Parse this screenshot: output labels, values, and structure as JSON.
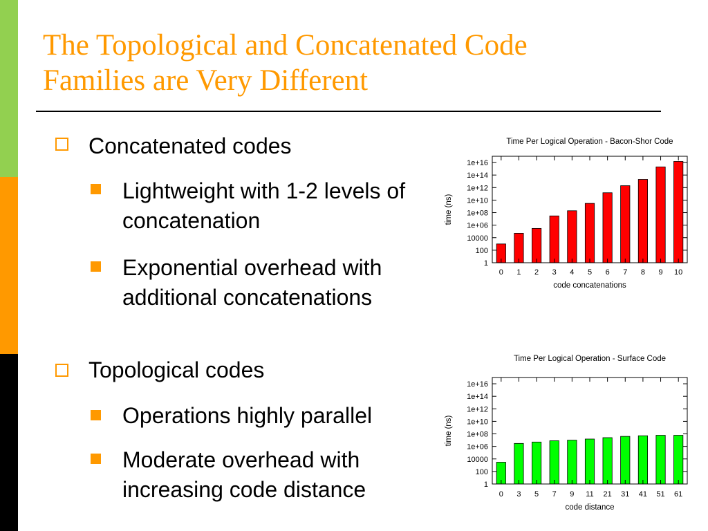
{
  "colors": {
    "sidebar_top": "#92d050",
    "sidebar_mid": "#ff9900",
    "sidebar_bottom": "#000000",
    "title": "#ff9900",
    "bullet_marker": "#ff9900",
    "bar_red": "#ff0000",
    "bar_green": "#00ff00"
  },
  "slide": {
    "title_line1": "The Topological and Concatenated Code",
    "title_line2": "Families are Very Different"
  },
  "bullets": {
    "concat": {
      "heading": "Concatenated codes",
      "items": [
        "Lightweight with 1-2 levels of concatenation",
        "Exponential overhead with additional concatenations"
      ]
    },
    "topo": {
      "heading": "Topological codes",
      "items": [
        "Operations highly parallel",
        "Moderate overhead with increasing code distance"
      ]
    }
  },
  "chart_data": [
    {
      "type": "bar",
      "title": "Time Per Logical Operation - Bacon-Shor Code",
      "xlabel": "code concatenations",
      "ylabel": "time (ns)",
      "y_scale": "log10",
      "ylim": [
        1,
        1e+17
      ],
      "y_ticks": [
        "1",
        "100",
        "10000",
        "1e+06",
        "1e+08",
        "1e+10",
        "1e+12",
        "1e+14",
        "1e+16"
      ],
      "categories": [
        "0",
        "1",
        "2",
        "3",
        "4",
        "5",
        "6",
        "7",
        "8",
        "9",
        "10"
      ],
      "values": [
        1000,
        50000,
        300000,
        30000000.0,
        200000000.0,
        3000000000.0,
        150000000000.0,
        2000000000000.0,
        20000000000000.0,
        2000000000000000.0,
        1.5e+16
      ],
      "color": "#ff0000",
      "grid": false
    },
    {
      "type": "bar",
      "title": "Time Per Logical Operation - Surface Code",
      "xlabel": "code distance",
      "ylabel": "time (ns)",
      "y_scale": "log10",
      "ylim": [
        1,
        1e+17
      ],
      "y_ticks": [
        "1",
        "100",
        "10000",
        "1e+06",
        "1e+08",
        "1e+10",
        "1e+12",
        "1e+14",
        "1e+16"
      ],
      "categories": [
        "0",
        "3",
        "5",
        "7",
        "9",
        "11",
        "21",
        "31",
        "41",
        "51",
        "61"
      ],
      "values": [
        3000,
        3000000.0,
        5000000.0,
        8000000.0,
        10000000.0,
        15000000.0,
        25000000.0,
        40000000.0,
        50000000.0,
        60000000.0,
        60000000.0
      ],
      "color": "#00ff00",
      "grid": false
    }
  ]
}
